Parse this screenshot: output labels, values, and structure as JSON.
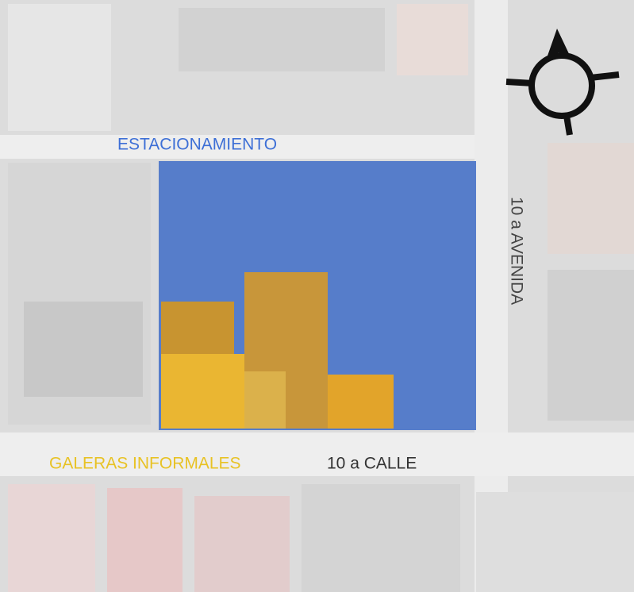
{
  "labels": {
    "parking": "ESTACIONAMIENTO",
    "avenue": "10 a AVENIDA",
    "informal": "GALERAS INFORMALES",
    "street": "10 a CALLE"
  }
}
